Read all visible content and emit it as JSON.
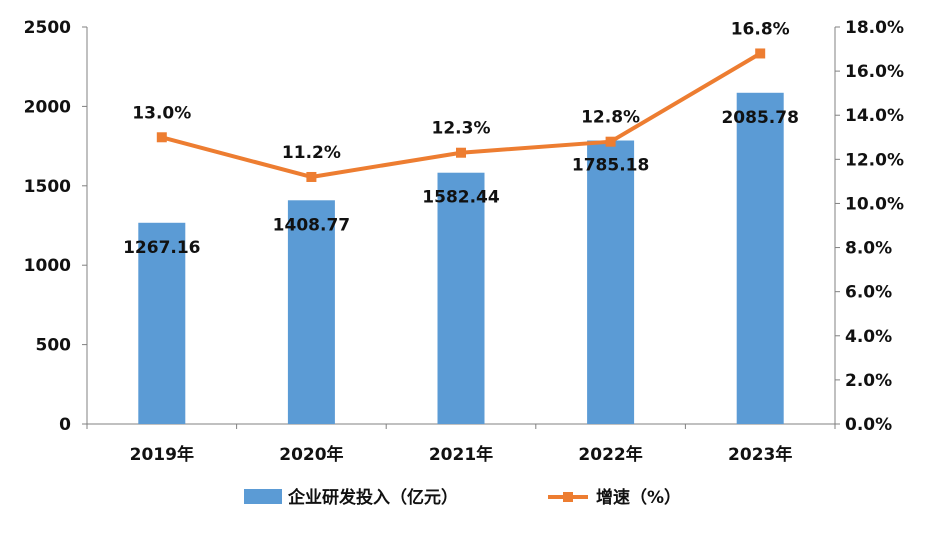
{
  "chart_data": {
    "type": "bar+line",
    "categories": [
      "2019年",
      "2020年",
      "2021年",
      "2022年",
      "2023年"
    ],
    "series": [
      {
        "name": "企业研发投入（亿元）",
        "type": "bar",
        "axis": "left",
        "values": [
          1267.16,
          1408.77,
          1582.44,
          1785.18,
          2085.78
        ],
        "labels": [
          "1267.16",
          "1408.77",
          "1582.44",
          "1785.18",
          "2085.78"
        ],
        "color": "#5B9BD5"
      },
      {
        "name": "增速（%）",
        "type": "line",
        "axis": "right",
        "values": [
          13.0,
          11.2,
          12.3,
          12.8,
          16.8
        ],
        "labels": [
          "13.0%",
          "11.2%",
          "12.3%",
          "12.8%",
          "16.8%"
        ],
        "color": "#ED7D31"
      }
    ],
    "y_left": {
      "min": 0,
      "max": 2500,
      "ticks": [
        "0",
        "500",
        "1000",
        "1500",
        "2000",
        "2500"
      ]
    },
    "y_right": {
      "min": 0,
      "max": 18,
      "ticks": [
        "0.0%",
        "2.0%",
        "4.0%",
        "6.0%",
        "8.0%",
        "10.0%",
        "12.0%",
        "14.0%",
        "16.0%",
        "18.0%"
      ]
    },
    "legend": "bottom",
    "grid": false,
    "title": ""
  }
}
